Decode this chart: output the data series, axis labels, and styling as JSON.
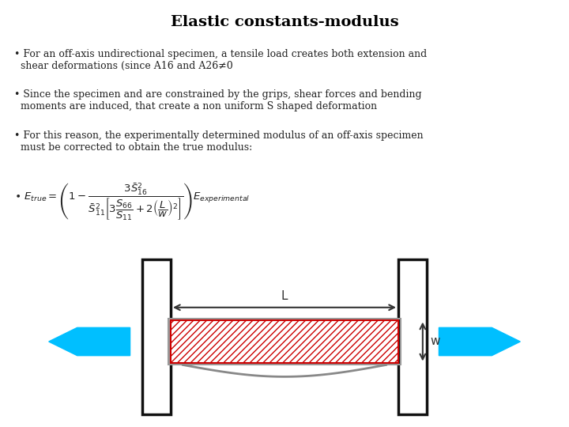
{
  "title": "Elastic constants-modulus",
  "title_fontsize": 14,
  "title_fontweight": "bold",
  "bg_color": "#ffffff",
  "bullet1": "For an off-axis undirectional specimen, a tensile load creates both extension and\n  shear deformations (since A16 and A26≠0",
  "bullet2": "Since the specimen and are constrained by the grips, shear forces and bending\n  moments are induced, that create a non uniform S shaped deformation",
  "bullet3": "For this reason, the experimentally determined modulus of an off-axis specimen\n  must be corrected to obtain the true modulus:",
  "text_fontsize": 9,
  "arrow_color": "#00bfff",
  "hatch_facecolor": "#ffffff",
  "hatch_edgecolor": "#cc0000",
  "grip_color": "#111111",
  "curve_color": "#888888",
  "dim_arrow_color": "#333333",
  "grip_lw": 2.5
}
